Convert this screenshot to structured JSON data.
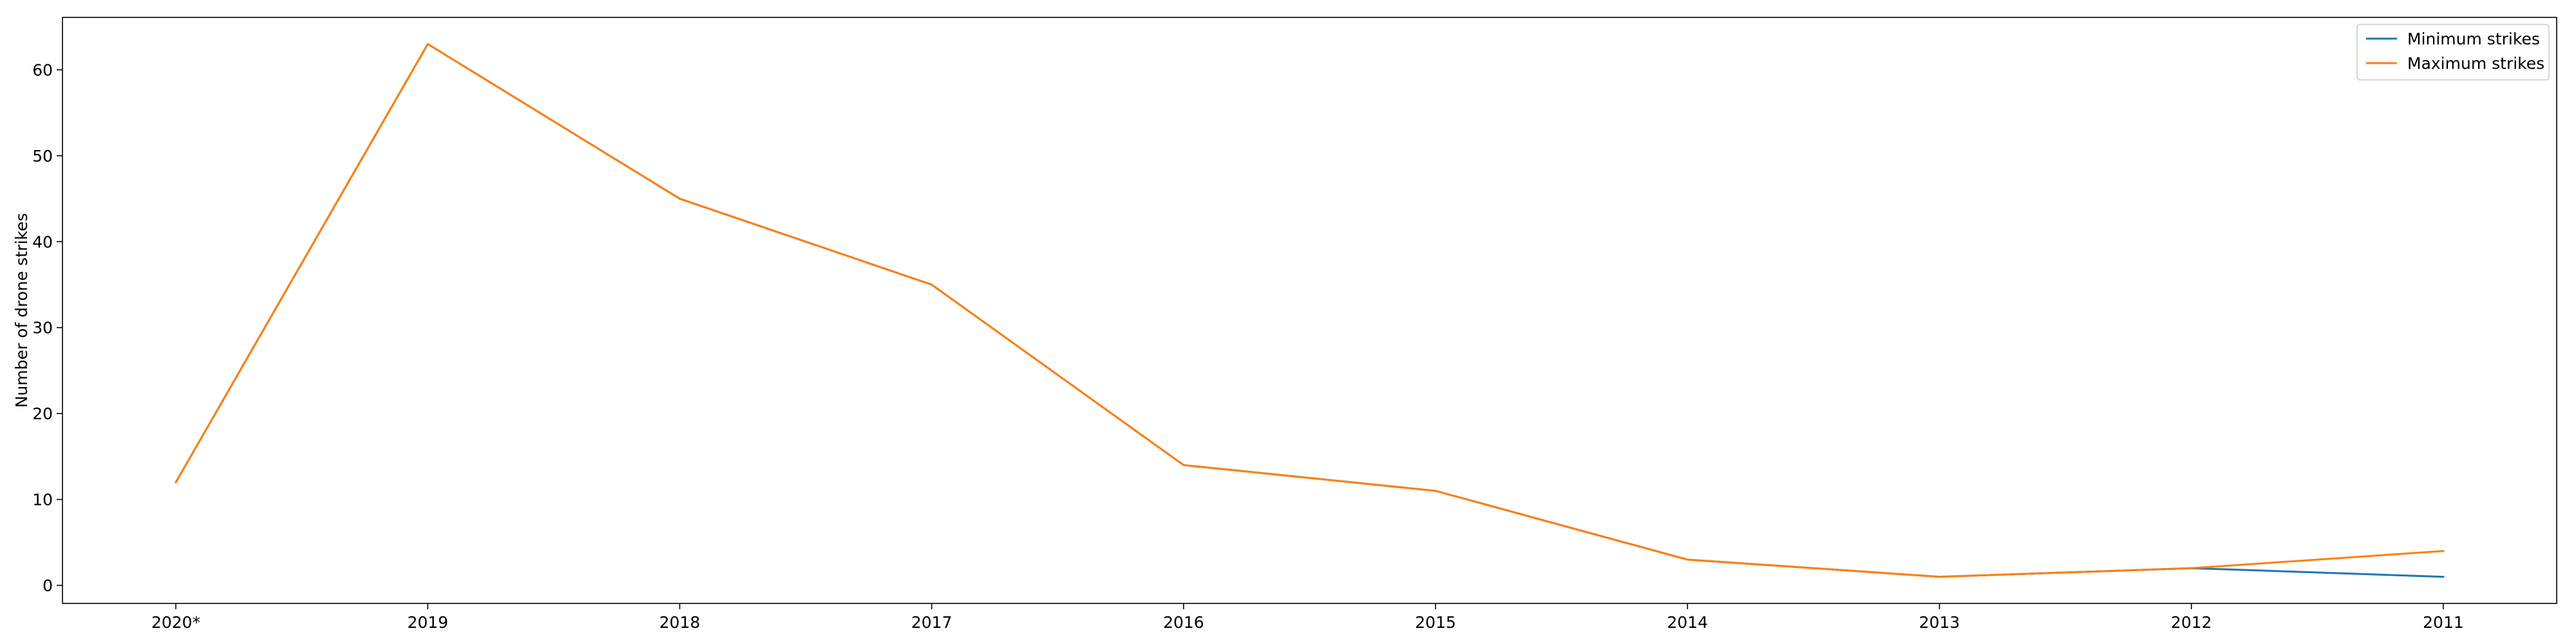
{
  "chart_data": {
    "type": "line",
    "title": "",
    "xlabel": "",
    "ylabel": "Number of drone strikes",
    "categories": [
      "2020*",
      "2019",
      "2018",
      "2017",
      "2016",
      "2015",
      "2014",
      "2013",
      "2012",
      "2011"
    ],
    "yticks": [
      0,
      10,
      20,
      30,
      40,
      50,
      60
    ],
    "ylim": [
      -2.1,
      66.1
    ],
    "grid": false,
    "legend_position": "top-right",
    "series": [
      {
        "name": "Minimum strikes",
        "color": "#1f77b4",
        "values": [
          12,
          63,
          45,
          35,
          14,
          11,
          3,
          1,
          2,
          1
        ]
      },
      {
        "name": "Maximum strikes",
        "color": "#ff7f0e",
        "values": [
          12,
          63,
          45,
          35,
          14,
          11,
          3,
          1,
          2,
          4
        ]
      }
    ]
  }
}
